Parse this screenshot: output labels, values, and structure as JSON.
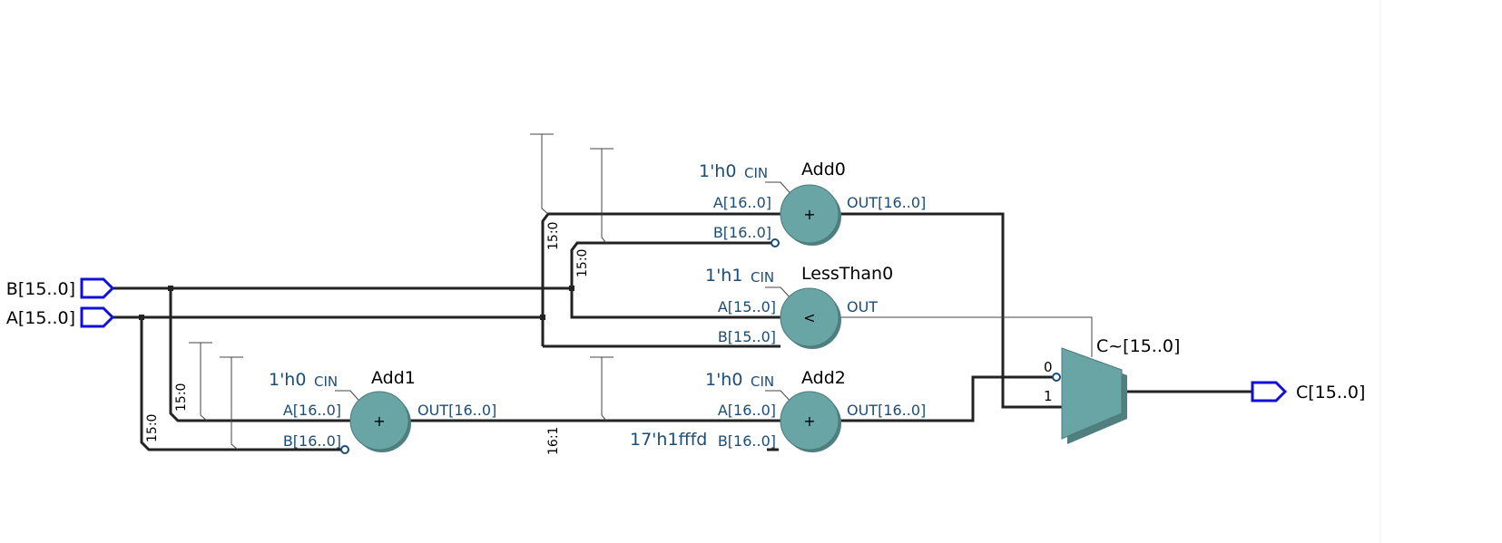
{
  "pins": {
    "b_in": "B[15..0]",
    "a_in": "A[15..0]",
    "c_out": "C[15..0]"
  },
  "nodes": {
    "add0": {
      "name": "Add0",
      "op": "+",
      "cin_value": "1'h0",
      "cin_label": "CIN",
      "port_a": "A[16..0]",
      "port_b": "B[16..0]",
      "port_out": "OUT[16..0]"
    },
    "lessthan0": {
      "name": "LessThan0",
      "op": "<",
      "cin_value": "1'h1",
      "cin_label": "CIN",
      "port_a": "A[15..0]",
      "port_b": "B[15..0]",
      "port_out": "OUT"
    },
    "add1": {
      "name": "Add1",
      "op": "+",
      "cin_value": "1'h0",
      "cin_label": "CIN",
      "port_a": "A[16..0]",
      "port_b": "B[16..0]",
      "port_out": "OUT[16..0]"
    },
    "add2": {
      "name": "Add2",
      "op": "+",
      "cin_value": "1'h0",
      "cin_label": "CIN",
      "port_a": "A[16..0]",
      "port_b": "B[16..0]",
      "port_out": "OUT[16..0]",
      "b_const": "17'h1fffd"
    }
  },
  "mux": {
    "name": "C~[15..0]",
    "in0": "0",
    "in1": "1"
  },
  "bus_labels": {
    "b1": "15:0",
    "b2": "15:0",
    "b3": "15:0",
    "b4": "15:0",
    "b5": "16:1"
  },
  "colors": {
    "node_fill": "#6aa5a5",
    "pin_stroke": "#1010d8",
    "wire": "#222222"
  }
}
